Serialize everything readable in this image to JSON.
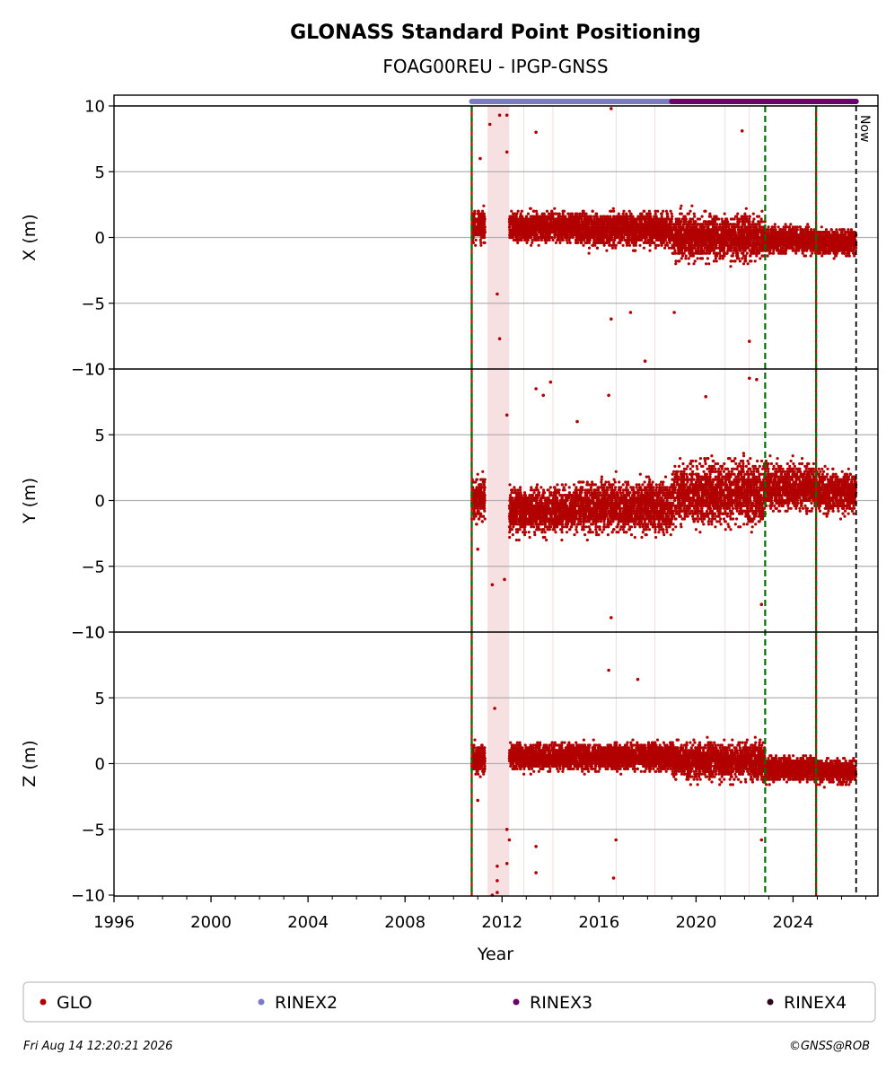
{
  "chart_data": {
    "type": "scatter",
    "title": "GLONASS Standard Point Positioning",
    "subtitle": "FOAG00REU - IPGP-GNSS",
    "xlabel": "Year",
    "xlim": [
      1996,
      2027.5
    ],
    "xticks": [
      "1996",
      "2000",
      "2004",
      "2008",
      "2012",
      "2016",
      "2020",
      "2024"
    ],
    "yticks": [
      "−10",
      "−5",
      "0",
      "5",
      "10"
    ],
    "grid": "horizontal",
    "now_label": "Now",
    "now_year": 2026.6,
    "data_gap_band": [
      2011.4,
      2012.3
    ],
    "receiver_change_lines": [
      2010.75,
      2024.95
    ],
    "antenna_change_lines": [
      2022.85
    ],
    "rinex_coverage": [
      {
        "name": "RINEX2",
        "start": 2010.75,
        "end": 2026.6,
        "color": "#7b7bbf"
      },
      {
        "name": "RINEX3",
        "start": 2019.0,
        "end": 2026.6,
        "color": "#6a006a"
      }
    ],
    "panels": [
      {
        "ylabel": "X (m)",
        "ylim": [
          -10,
          10
        ],
        "segments": [
          {
            "start": 2010.75,
            "end": 2011.3,
            "center": 0.8,
            "spread": 1.4
          },
          {
            "start": 2012.3,
            "end": 2015.0,
            "center": 0.8,
            "spread": 1.3
          },
          {
            "start": 2015.0,
            "end": 2019.0,
            "center": 0.6,
            "spread": 1.5
          },
          {
            "start": 2019.0,
            "end": 2022.85,
            "center": 0.0,
            "spread": 2.0
          },
          {
            "start": 2022.85,
            "end": 2024.95,
            "center": -0.2,
            "spread": 1.2
          },
          {
            "start": 2024.95,
            "end": 2026.6,
            "center": -0.4,
            "spread": 1.1
          }
        ],
        "outliers": [
          [
            2011.5,
            8.6
          ],
          [
            2011.9,
            9.3
          ],
          [
            2012.2,
            9.3
          ],
          [
            2013.4,
            8.0
          ],
          [
            2016.5,
            9.8
          ],
          [
            2016.5,
            -6.2
          ],
          [
            2017.9,
            -9.4
          ],
          [
            2019.1,
            -5.7
          ],
          [
            2021.9,
            8.1
          ],
          [
            2022.2,
            -7.9
          ],
          [
            2011.9,
            -7.7
          ],
          [
            2011.8,
            -4.3
          ],
          [
            2011.1,
            6.0
          ],
          [
            2012.2,
            6.5
          ],
          [
            2017.3,
            -5.7
          ]
        ]
      },
      {
        "ylabel": "Y (m)",
        "ylim": [
          -10,
          10
        ],
        "segments": [
          {
            "start": 2010.75,
            "end": 2011.3,
            "center": 0.0,
            "spread": 2.0
          },
          {
            "start": 2012.3,
            "end": 2015.0,
            "center": -0.8,
            "spread": 2.0
          },
          {
            "start": 2015.0,
            "end": 2019.0,
            "center": -0.5,
            "spread": 2.3
          },
          {
            "start": 2019.0,
            "end": 2022.85,
            "center": 0.5,
            "spread": 2.8
          },
          {
            "start": 2022.85,
            "end": 2024.95,
            "center": 1.0,
            "spread": 2.0
          },
          {
            "start": 2024.95,
            "end": 2026.6,
            "center": 0.6,
            "spread": 1.8
          }
        ],
        "outliers": [
          [
            2013.4,
            8.5
          ],
          [
            2013.7,
            8.0
          ],
          [
            2014.0,
            9.0
          ],
          [
            2016.4,
            8.0
          ],
          [
            2016.5,
            -8.9
          ],
          [
            2022.2,
            9.3
          ],
          [
            2022.5,
            9.2
          ],
          [
            2022.7,
            -7.9
          ],
          [
            2011.6,
            -6.4
          ],
          [
            2012.1,
            -6.0
          ],
          [
            2012.2,
            6.5
          ],
          [
            2011.0,
            -3.7
          ],
          [
            2020.4,
            7.9
          ],
          [
            2015.1,
            6.0
          ]
        ]
      },
      {
        "ylabel": "Z (m)",
        "ylim": [
          -10,
          10
        ],
        "segments": [
          {
            "start": 2010.75,
            "end": 2011.3,
            "center": 0.3,
            "spread": 1.2
          },
          {
            "start": 2012.3,
            "end": 2015.0,
            "center": 0.5,
            "spread": 1.1
          },
          {
            "start": 2015.0,
            "end": 2019.0,
            "center": 0.5,
            "spread": 1.2
          },
          {
            "start": 2019.0,
            "end": 2022.85,
            "center": 0.2,
            "spread": 1.6
          },
          {
            "start": 2022.85,
            "end": 2024.95,
            "center": -0.4,
            "spread": 1.1
          },
          {
            "start": 2024.95,
            "end": 2026.6,
            "center": -0.6,
            "spread": 1.0
          }
        ],
        "outliers": [
          [
            2011.6,
            -10.0
          ],
          [
            2011.8,
            -9.8
          ],
          [
            2011.8,
            -8.9
          ],
          [
            2011.7,
            4.2
          ],
          [
            2011.8,
            -7.8
          ],
          [
            2012.2,
            -7.6
          ],
          [
            2012.2,
            -5.0
          ],
          [
            2012.3,
            -5.8
          ],
          [
            2013.4,
            -6.3
          ],
          [
            2013.4,
            -8.3
          ],
          [
            2016.4,
            7.1
          ],
          [
            2016.6,
            -8.7
          ],
          [
            2016.7,
            -5.8
          ],
          [
            2017.6,
            6.4
          ],
          [
            2022.7,
            -5.8
          ],
          [
            2011.0,
            -2.8
          ]
        ]
      }
    ]
  },
  "legend": [
    {
      "label": "GLO",
      "color": "#b20000"
    },
    {
      "label": "RINEX2",
      "color": "#7b7bbf"
    },
    {
      "label": "RINEX3",
      "color": "#6a006a"
    },
    {
      "label": "RINEX4",
      "color": "#2a0a1a"
    }
  ],
  "footer": {
    "timestamp": "Fri Aug 14 12:20:21 2026",
    "copyright": "©GNSS@ROB"
  }
}
